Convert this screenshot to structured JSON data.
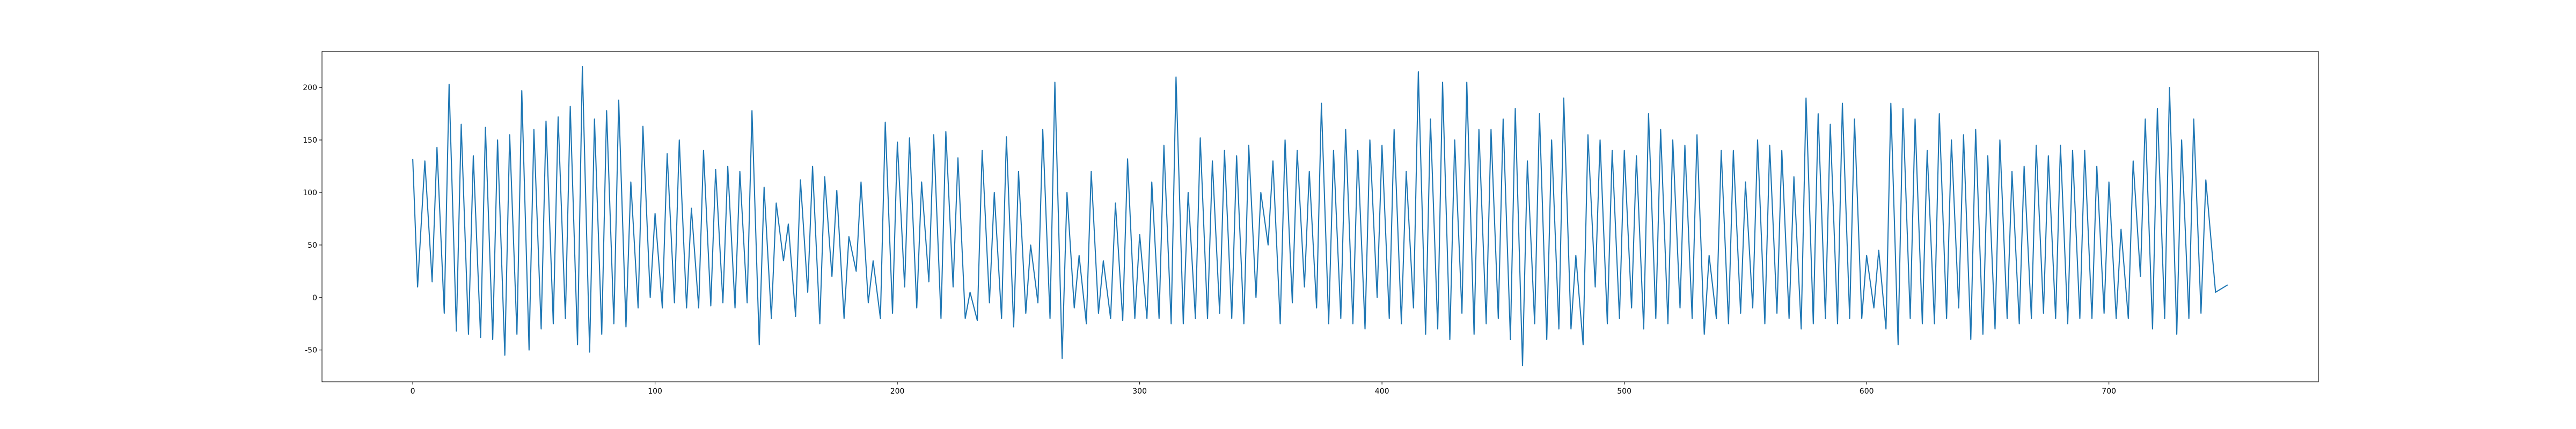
{
  "chart_data": {
    "type": "line",
    "color": "#1f77b4",
    "x": [
      0,
      2,
      5,
      8,
      10,
      13,
      15,
      18,
      20,
      23,
      25,
      28,
      30,
      33,
      35,
      38,
      40,
      43,
      45,
      48,
      50,
      53,
      55,
      58,
      60,
      63,
      65,
      68,
      70,
      73,
      75,
      78,
      80,
      83,
      85,
      88,
      90,
      93,
      95,
      98,
      100,
      103,
      105,
      108,
      110,
      113,
      115,
      118,
      120,
      123,
      125,
      128,
      130,
      133,
      135,
      138,
      140,
      143,
      145,
      148,
      150,
      153,
      155,
      158,
      160,
      163,
      165,
      168,
      170,
      173,
      175,
      178,
      180,
      183,
      185,
      188,
      190,
      193,
      195,
      198,
      200,
      203,
      205,
      208,
      210,
      213,
      215,
      218,
      220,
      223,
      225,
      228,
      230,
      233,
      235,
      238,
      240,
      243,
      245,
      248,
      250,
      253,
      255,
      258,
      260,
      263,
      265,
      268,
      270,
      273,
      275,
      278,
      280,
      283,
      285,
      288,
      290,
      293,
      295,
      298,
      300,
      303,
      305,
      308,
      310,
      313,
      315,
      318,
      320,
      323,
      325,
      328,
      330,
      333,
      335,
      338,
      340,
      343,
      345,
      348,
      350,
      353,
      355,
      358,
      360,
      363,
      365,
      368,
      370,
      373,
      375,
      378,
      380,
      383,
      385,
      388,
      390,
      393,
      395,
      398,
      400,
      403,
      405,
      408,
      410,
      413,
      415,
      418,
      420,
      423,
      425,
      428,
      430,
      433,
      435,
      438,
      440,
      443,
      445,
      448,
      450,
      453,
      455,
      458,
      460,
      463,
      465,
      468,
      470,
      473,
      475,
      478,
      480,
      483,
      485,
      488,
      490,
      493,
      495,
      498,
      500,
      503,
      505,
      508,
      510,
      513,
      515,
      518,
      520,
      523,
      525,
      528,
      530,
      533,
      535,
      538,
      540,
      543,
      545,
      548,
      550,
      553,
      555,
      558,
      560,
      563,
      565,
      568,
      570,
      573,
      575,
      578,
      580,
      583,
      585,
      588,
      590,
      593,
      595,
      598,
      600,
      603,
      605,
      608,
      610,
      613,
      615,
      618,
      620,
      623,
      625,
      628,
      630,
      633,
      635,
      638,
      640,
      643,
      645,
      648,
      650,
      653,
      655,
      658,
      660,
      663,
      665,
      668,
      670,
      673,
      675,
      678,
      680,
      683,
      685,
      688,
      690,
      693,
      695,
      698,
      700,
      703,
      705,
      708,
      710,
      713,
      715,
      718,
      720,
      723,
      725,
      728,
      730,
      733,
      735,
      738,
      740,
      744,
      749
    ],
    "values": [
      132,
      10,
      130,
      15,
      143,
      -15,
      203,
      -32,
      165,
      -35,
      135,
      -38,
      162,
      -40,
      150,
      -55,
      155,
      -35,
      197,
      -50,
      160,
      -30,
      168,
      -25,
      172,
      -20,
      182,
      -45,
      220,
      -52,
      170,
      -35,
      178,
      -25,
      188,
      -28,
      110,
      -10,
      163,
      0,
      80,
      -10,
      137,
      -5,
      150,
      -10,
      85,
      -10,
      140,
      -8,
      122,
      -5,
      125,
      -10,
      120,
      -5,
      178,
      -45,
      105,
      -20,
      90,
      35,
      70,
      -18,
      112,
      5,
      125,
      -25,
      115,
      20,
      102,
      -20,
      58,
      25,
      110,
      -5,
      35,
      -20,
      167,
      -15,
      148,
      10,
      152,
      -10,
      110,
      15,
      155,
      -20,
      158,
      10,
      133,
      -20,
      5,
      -22,
      140,
      -5,
      100,
      -20,
      153,
      -28,
      120,
      -15,
      50,
      -5,
      160,
      -20,
      205,
      -58,
      100,
      -10,
      40,
      -25,
      120,
      -15,
      35,
      -20,
      90,
      -22,
      132,
      -20,
      60,
      -20,
      110,
      -20,
      145,
      -25,
      210,
      -25,
      100,
      -20,
      152,
      -20,
      130,
      -15,
      140,
      -20,
      135,
      -25,
      145,
      0,
      100,
      50,
      130,
      -25,
      150,
      -5,
      140,
      10,
      120,
      -10,
      185,
      -25,
      140,
      -20,
      160,
      -25,
      140,
      -30,
      150,
      0,
      145,
      -20,
      160,
      -25,
      120,
      -10,
      215,
      -35,
      170,
      -30,
      205,
      -40,
      150,
      -15,
      205,
      -35,
      160,
      -25,
      160,
      -20,
      170,
      -40,
      180,
      -65,
      130,
      -25,
      175,
      -40,
      150,
      -30,
      190,
      -30,
      40,
      -45,
      155,
      10,
      150,
      -25,
      140,
      -20,
      140,
      -10,
      135,
      -30,
      175,
      -20,
      160,
      -25,
      150,
      -10,
      145,
      -20,
      155,
      -35,
      40,
      -20,
      140,
      -25,
      140,
      -15,
      110,
      -10,
      150,
      -25,
      145,
      -15,
      140,
      -20,
      115,
      -30,
      190,
      -25,
      175,
      -20,
      165,
      -25,
      185,
      -20,
      170,
      -20,
      40,
      -10,
      45,
      -30,
      185,
      -45,
      180,
      -20,
      170,
      -25,
      140,
      -25,
      175,
      -20,
      150,
      -10,
      155,
      -40,
      160,
      -35,
      135,
      -30,
      150,
      -20,
      120,
      -25,
      125,
      -20,
      145,
      -15,
      135,
      -20,
      145,
      -25,
      140,
      -20,
      140,
      -20,
      125,
      -15,
      110,
      -20,
      65,
      -20,
      130,
      20,
      170,
      -30,
      180,
      -20,
      200,
      -35,
      150,
      -20,
      170,
      -15,
      112,
      5,
      12
    ],
    "xlim": [
      -37.45,
      786.45
    ],
    "ylim": [
      -80.3,
      234.3
    ],
    "xticks": [
      0,
      100,
      200,
      300,
      400,
      500,
      600,
      700
    ],
    "yticks": [
      -50,
      0,
      50,
      100,
      150,
      200
    ]
  }
}
